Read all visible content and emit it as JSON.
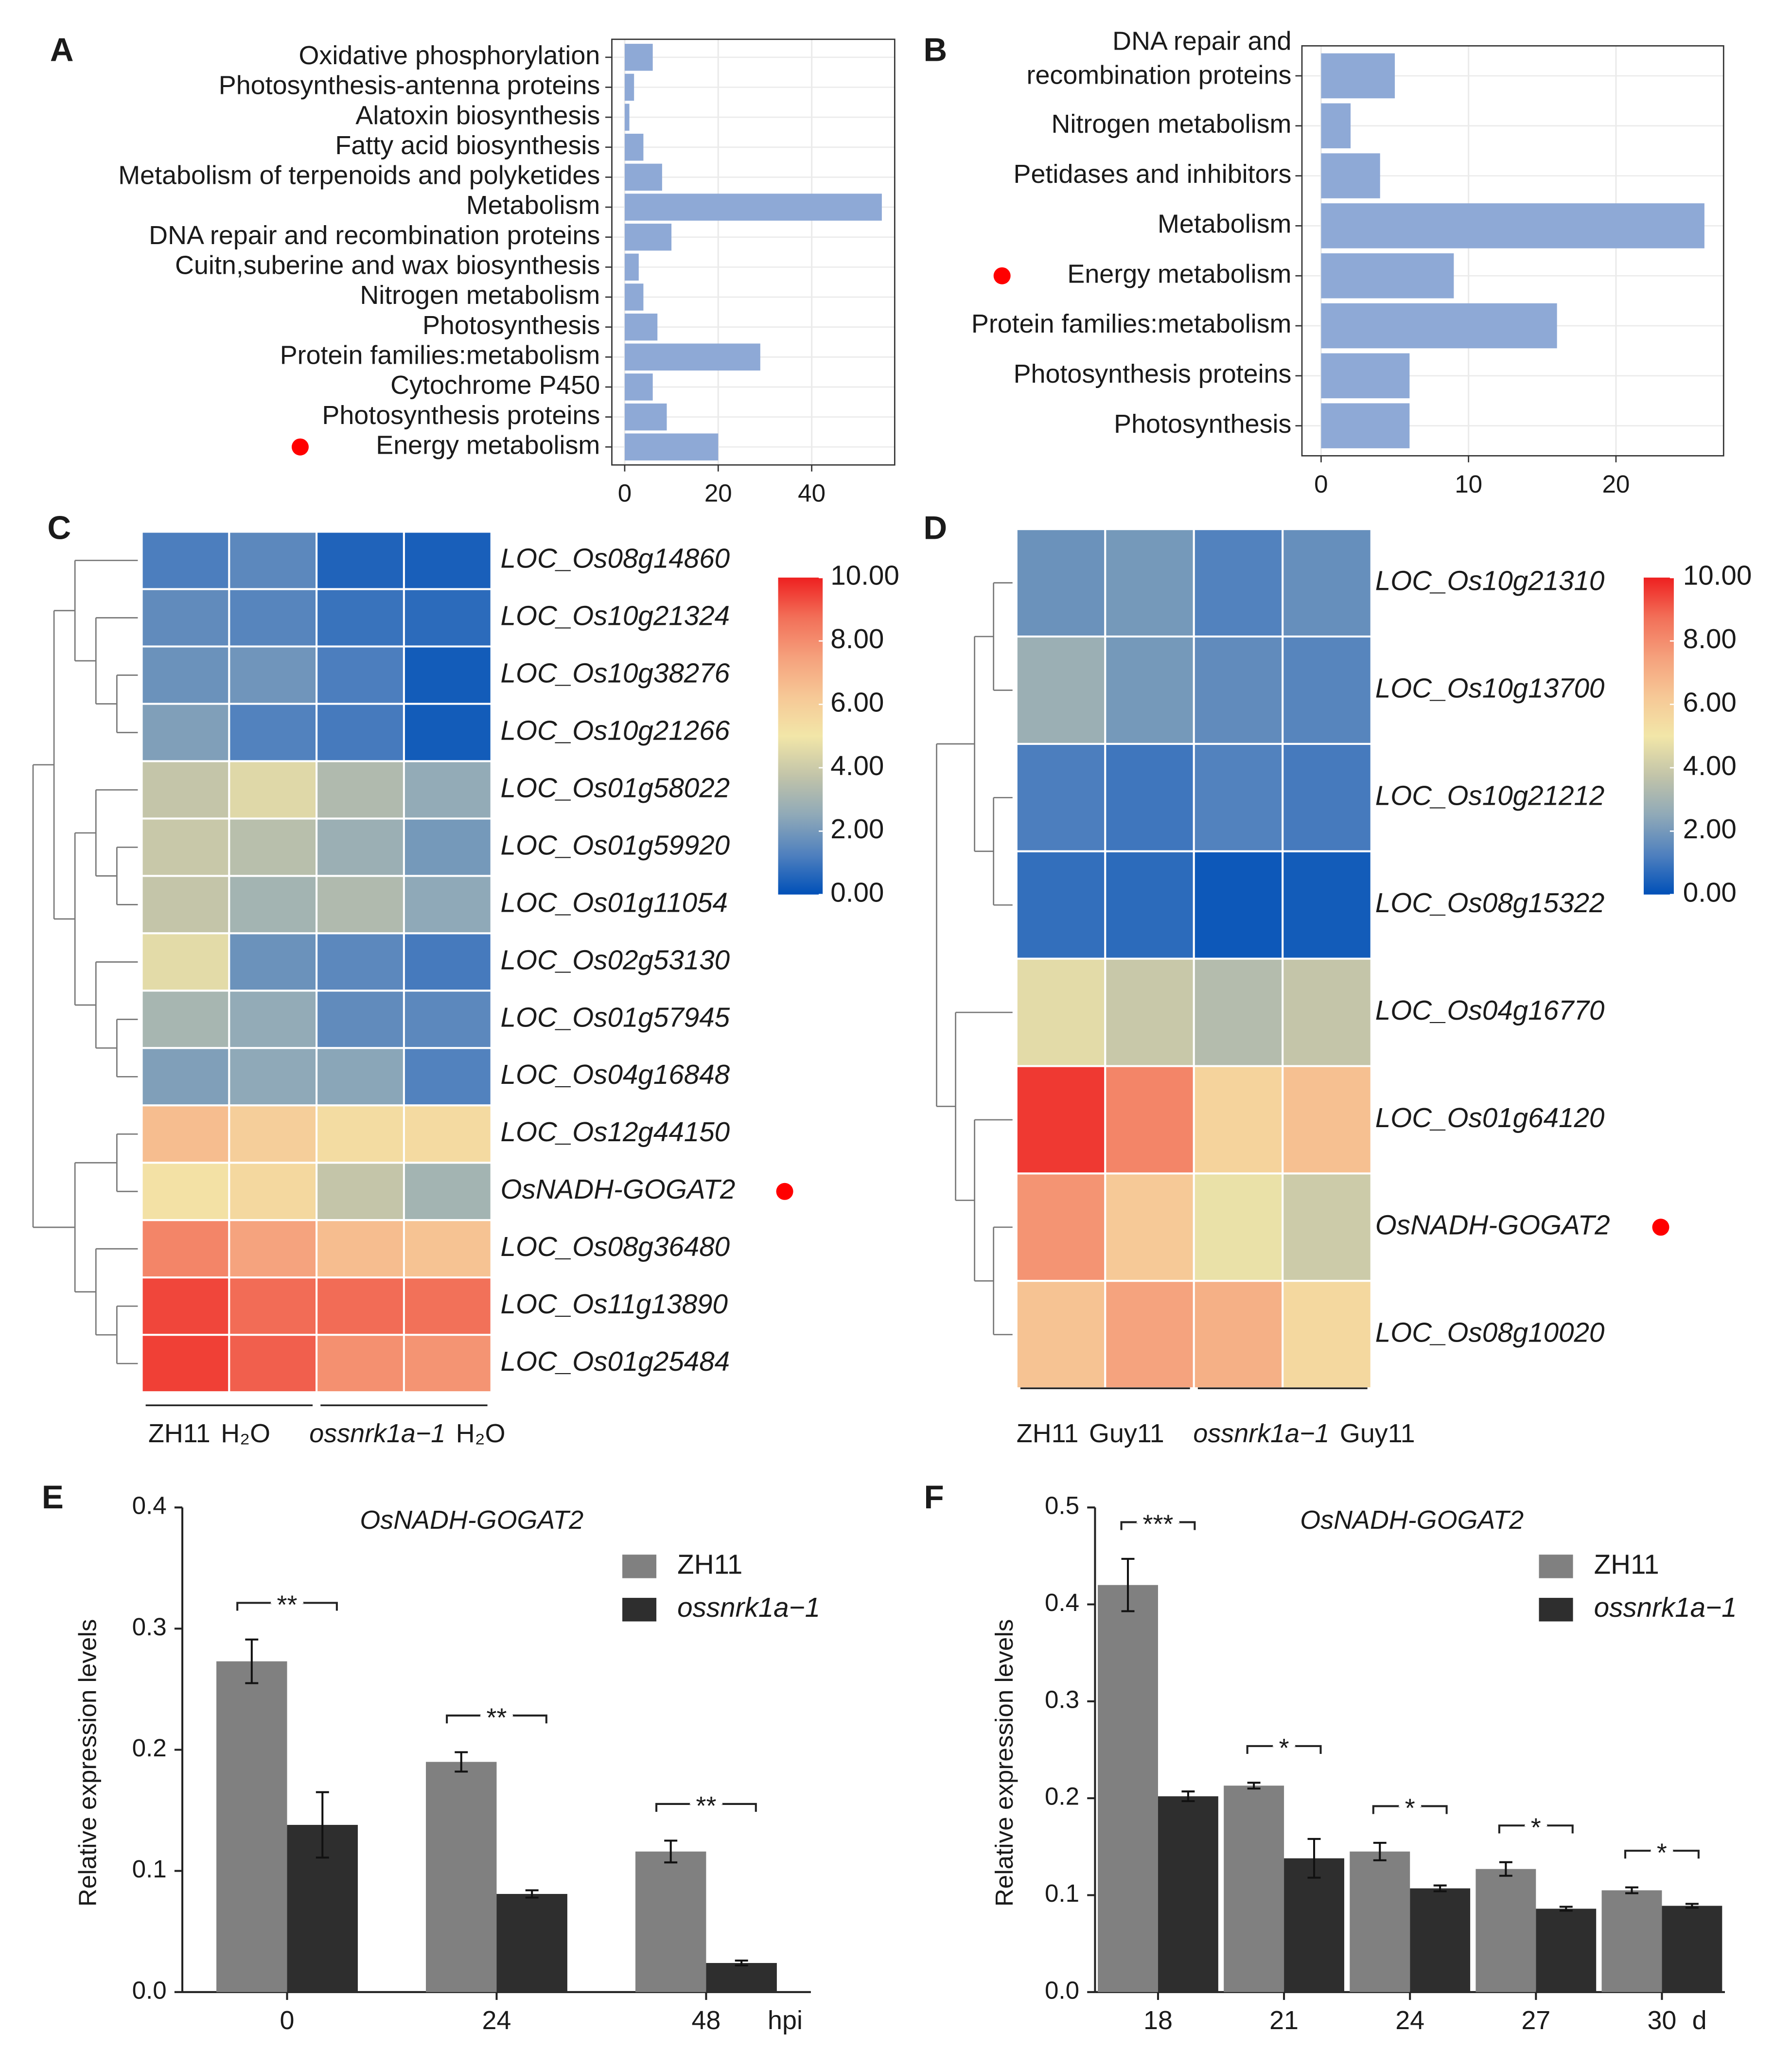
{
  "chart_data": [
    {
      "type": "hbar",
      "panel_label": "A",
      "categories": [
        "Oxidative phosphorylation",
        "Photosynthesis-antenna proteins",
        "Alatoxin biosynthesis",
        "Fatty acid biosynthesis",
        "Metabolism of terpenoids and polyketides",
        "Metabolism",
        "DNA repair and recombination proteins",
        "Cuitn,suberine and wax biosynthesis",
        "Nitrogen metabolism",
        "Photosynthesis",
        "Protein families:metabolism",
        "Cytochrome P450",
        "Photosynthesis proteins",
        "Energy metabolism"
      ],
      "values": [
        6,
        2,
        1,
        4,
        8,
        55,
        10,
        3,
        4,
        7,
        29,
        6,
        9,
        20
      ],
      "color": "#8ea9d6",
      "xlim": [
        -2.75,
        57.75
      ],
      "xticks": [
        0,
        20,
        40
      ],
      "grid": true,
      "highlight_index": 13,
      "highlight_color": "#ff0000"
    },
    {
      "type": "hbar",
      "panel_label": "B",
      "categories": [
        "DNA repair and\nrecombination proteins",
        "Nitrogen metabolism",
        "Petidases and inhibitors",
        "Metabolism",
        "Energy metabolism",
        "Protein families:metabolism",
        "Photosynthesis proteins",
        "Photosynthesis"
      ],
      "values": [
        5,
        2,
        4,
        26,
        9,
        16,
        6,
        6
      ],
      "color": "#8ea9d6",
      "xlim": [
        -1.3,
        27.3
      ],
      "xticks": [
        0,
        10,
        20
      ],
      "grid": true,
      "highlight_index": 4,
      "highlight_color": "#ff0000"
    },
    {
      "type": "heatmap",
      "panel_label": "C",
      "rows": [
        "LOC_Os08g14860",
        "LOC_Os10g21324",
        "LOC_Os10g38276",
        "LOC_Os10g21266",
        "LOC_Os01g58022",
        "LOC_Os01g59920",
        "LOC_Os01g11054",
        "LOC_Os02g53130",
        "LOC_Os01g57945",
        "LOC_Os04g16848",
        "LOC_Os12g44150",
        "OsNADH-GOGAT2",
        "LOC_Os08g36480",
        "LOC_Os11g13890",
        "LOC_Os01g25484"
      ],
      "values": [
        [
          1.2,
          1.5,
          0.5,
          0.4
        ],
        [
          1.6,
          1.4,
          0.9,
          0.7
        ],
        [
          1.8,
          1.9,
          1.2,
          0.3
        ],
        [
          2.2,
          1.3,
          1.1,
          0.3
        ],
        [
          3.8,
          4.5,
          3.3,
          2.6
        ],
        [
          3.9,
          3.5,
          2.8,
          2.0
        ],
        [
          3.8,
          3.0,
          3.3,
          2.5
        ],
        [
          4.6,
          1.8,
          1.5,
          1.1
        ],
        [
          3.1,
          2.6,
          1.6,
          1.5
        ],
        [
          2.2,
          2.5,
          2.4,
          1.3
        ],
        [
          6.6,
          6.0,
          5.4,
          5.5
        ],
        [
          5.2,
          5.6,
          3.8,
          3.0
        ],
        [
          8.2,
          7.4,
          6.6,
          6.4
        ],
        [
          9.4,
          8.8,
          8.8,
          8.7
        ],
        [
          9.5,
          9.0,
          7.9,
          7.8
        ]
      ],
      "column_groups": [
        {
          "genotype": "ZH11",
          "treatment": "H₂O"
        },
        {
          "genotype": "ossnrk1a−1",
          "treatment": "H₂O"
        }
      ],
      "clim": [
        0,
        10
      ],
      "cticks": [
        {
          "value": 0,
          "label": "0.00"
        },
        {
          "value": 2,
          "label": "2.00"
        },
        {
          "value": 4,
          "label": "4.00"
        },
        {
          "value": 6,
          "label": "6.00"
        },
        {
          "value": 8,
          "label": "8.00"
        },
        {
          "value": 10,
          "label": "10.00"
        }
      ],
      "colorscale": [
        "#0050b8",
        "#4f80be",
        "#8fa9b8",
        "#c2c4a9",
        "#f2e6a8",
        "#f6c896",
        "#f5a07c",
        "#f26f58",
        "#ee2020"
      ],
      "highlight_index": 11,
      "highlight_color": "#ff0000"
    },
    {
      "type": "heatmap",
      "panel_label": "D",
      "rows": [
        "LOC_Os10g21310",
        "LOC_Os10g13700",
        "LOC_Os10g21212",
        "LOC_Os08g15322",
        "LOC_Os04g16770",
        "LOC_Os01g64120",
        "OsNADH-GOGAT2",
        "LOC_Os08g10020"
      ],
      "values": [
        [
          1.8,
          2.0,
          1.3,
          1.7
        ],
        [
          2.8,
          2.0,
          1.6,
          1.4
        ],
        [
          1.2,
          1.0,
          1.3,
          1.1
        ],
        [
          0.8,
          0.7,
          0.2,
          0.3
        ],
        [
          4.6,
          3.9,
          3.4,
          3.8
        ],
        [
          9.6,
          8.2,
          5.8,
          6.5
        ],
        [
          7.8,
          6.2,
          4.8,
          4.0
        ],
        [
          6.4,
          7.4,
          7.0,
          5.6
        ]
      ],
      "column_groups": [
        {
          "genotype": "ZH11",
          "treatment": "Guy11"
        },
        {
          "genotype": "ossnrk1a−1",
          "treatment": "Guy11"
        }
      ],
      "clim": [
        0,
        10
      ],
      "cticks": [
        {
          "value": 0,
          "label": "0.00"
        },
        {
          "value": 2,
          "label": "2.00"
        },
        {
          "value": 4,
          "label": "4.00"
        },
        {
          "value": 6,
          "label": "6.00"
        },
        {
          "value": 8,
          "label": "8.00"
        },
        {
          "value": 10,
          "label": "10.00"
        }
      ],
      "colorscale": [
        "#0050b8",
        "#4f80be",
        "#8fa9b8",
        "#c2c4a9",
        "#f2e6a8",
        "#f6c896",
        "#f5a07c",
        "#f26f58",
        "#ee2020"
      ],
      "highlight_index": 6,
      "highlight_color": "#ff0000"
    },
    {
      "type": "grouped_bar",
      "panel_label": "E",
      "title": "OsNADH-GOGAT2",
      "y_label": "Relative expression levels",
      "x_unit": "hpi",
      "categories": [
        "0",
        "24",
        "48"
      ],
      "series": [
        {
          "name": "ZH11",
          "color": "#808080",
          "values": [
            0.273,
            0.19,
            0.116
          ],
          "errors": [
            0.018,
            0.008,
            0.009
          ]
        },
        {
          "name": "ossnrk1a−1",
          "color": "#2e2e2e",
          "values": [
            0.138,
            0.081,
            0.024
          ],
          "errors": [
            0.027,
            0.003,
            0.002
          ]
        }
      ],
      "significance": [
        "**",
        "**",
        "**"
      ],
      "ylim": [
        0,
        0.4
      ],
      "yticks": [
        {
          "value": 0,
          "label": "0.0"
        },
        0.1,
        0.2,
        0.3,
        0.4
      ]
    },
    {
      "type": "grouped_bar",
      "panel_label": "F",
      "title": "OsNADH-GOGAT2",
      "y_label": "Relative expression levels",
      "x_unit": "d",
      "categories": [
        "18",
        "21",
        "24",
        "27",
        "30"
      ],
      "series": [
        {
          "name": "ZH11",
          "color": "#808080",
          "values": [
            0.42,
            0.213,
            0.145,
            0.127,
            0.105
          ],
          "errors": [
            0.027,
            0.003,
            0.009,
            0.007,
            0.003
          ]
        },
        {
          "name": "ossnrk1a−1",
          "color": "#2e2e2e",
          "values": [
            0.202,
            0.138,
            0.107,
            0.086,
            0.089
          ],
          "errors": [
            0.005,
            0.02,
            0.003,
            0.002,
            0.002
          ]
        }
      ],
      "significance": [
        "***",
        "*",
        "*",
        "*",
        "*"
      ],
      "ylim": [
        0,
        0.5
      ],
      "yticks": [
        {
          "value": 0,
          "label": "0.0"
        },
        0.1,
        0.2,
        0.3,
        0.4,
        0.5
      ]
    }
  ]
}
